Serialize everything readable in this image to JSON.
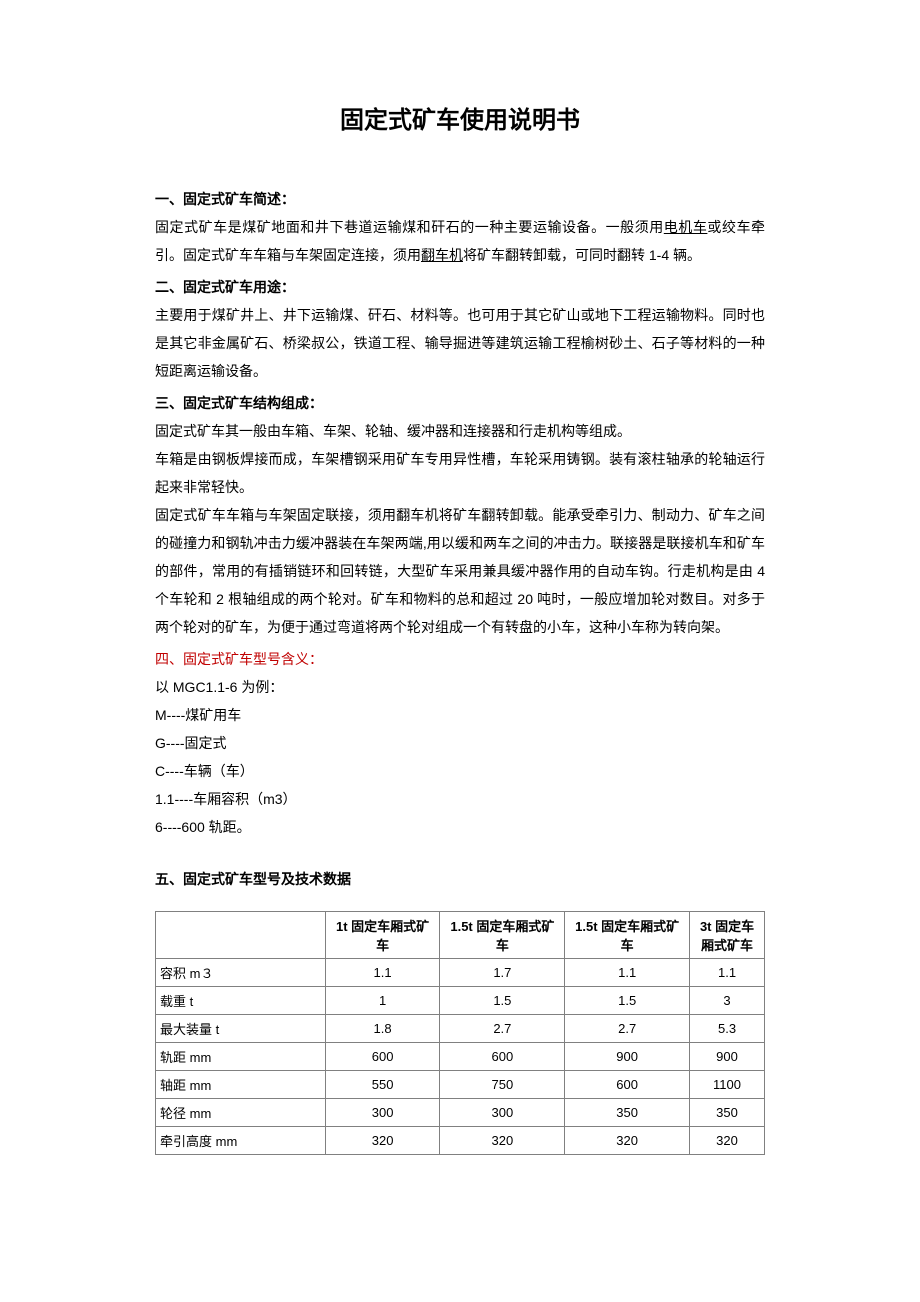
{
  "title": "固定式矿车使用说明书",
  "sections": {
    "s1": {
      "header": "一、固定式矿车简述：",
      "p1a": "固定式矿车是煤矿地面和井下巷道运输煤和矸石的一种主要运输设备。一般须用",
      "u1": "电机车",
      "p1b": "或绞车牵引。固定式矿车车箱与车架固定连接，须用",
      "u2": "翻车机",
      "p1c": "将矿车翻转卸载，可同时翻转 1-4 辆。"
    },
    "s2": {
      "header": "二、固定式矿车用途：",
      "p1": "主要用于煤矿井上、井下运输煤、矸石、材料等。也可用于其它矿山或地下工程运输物料。同时也是其它非金属矿石、桥梁叔公，铁道工程、输导掘进等建筑运输工程榆树砂土、石子等材料的一种短距离运输设备。"
    },
    "s3": {
      "header": "三、固定式矿车结构组成：",
      "p1": "固定式矿车其一般由车箱、车架、轮轴、缓冲器和连接器和行走机构等组成。",
      "p2": "车箱是由钢板焊接而成，车架槽钢采用矿车专用异性槽，车轮采用铸钢。装有滚柱轴承的轮轴运行起来非常轻快。",
      "p3": "固定式矿车车箱与车架固定联接，须用翻车机将矿车翻转卸载。能承受牵引力、制动力、矿车之间的碰撞力和钢轨冲击力缓冲器装在车架两端,用以缓和两车之间的冲击力。联接器是联接机车和矿车的部件，常用的有插销链环和回转链，大型矿车采用兼具缓冲器作用的自动车钩。行走机构是由 4 个车轮和 2 根轴组成的两个轮对。矿车和物料的总和超过 20 吨时，一般应增加轮对数目。对多于两个轮对的矿车，为便于通过弯道将两个轮对组成一个有转盘的小车，这种小车称为转向架。"
    },
    "s4": {
      "header": "四、固定式矿车型号含义：",
      "l1": "以 MGC1.1-6 为例：",
      "l2": " M----煤矿用车",
      "l3": "G----固定式",
      "l4": "C----车辆（车）",
      "l5": "1.1----车厢容积（m3）",
      "l6": "6----600 轨距。"
    },
    "s5": {
      "header": "五、固定式矿车型号及技术数据"
    }
  },
  "table": {
    "columns": [
      "",
      "1t 固定车厢式矿车",
      "1.5t 固定车厢式矿车",
      "1.5t 固定车厢式矿车",
      "3t 固定车厢式矿车"
    ],
    "rows": [
      {
        "label": "容积  m３",
        "v": [
          "1.1",
          "1.7",
          "1.1",
          "1.1"
        ]
      },
      {
        "label": "载重  t",
        "v": [
          "1",
          "1.5",
          "1.5",
          "3"
        ]
      },
      {
        "label": "最大装量  t",
        "v": [
          "1.8",
          "2.7",
          "2.7",
          "5.3"
        ]
      },
      {
        "label": "轨距  mm",
        "v": [
          "600",
          "600",
          "900",
          "900"
        ]
      },
      {
        "label": "轴距  mm",
        "v": [
          "550",
          "750",
          "600",
          "1100"
        ]
      },
      {
        "label": "轮径  mm",
        "v": [
          "300",
          "300",
          "350",
          "350"
        ]
      },
      {
        "label": "牵引高度  mm",
        "v": [
          "320",
          "320",
          "320",
          "320"
        ]
      }
    ]
  }
}
